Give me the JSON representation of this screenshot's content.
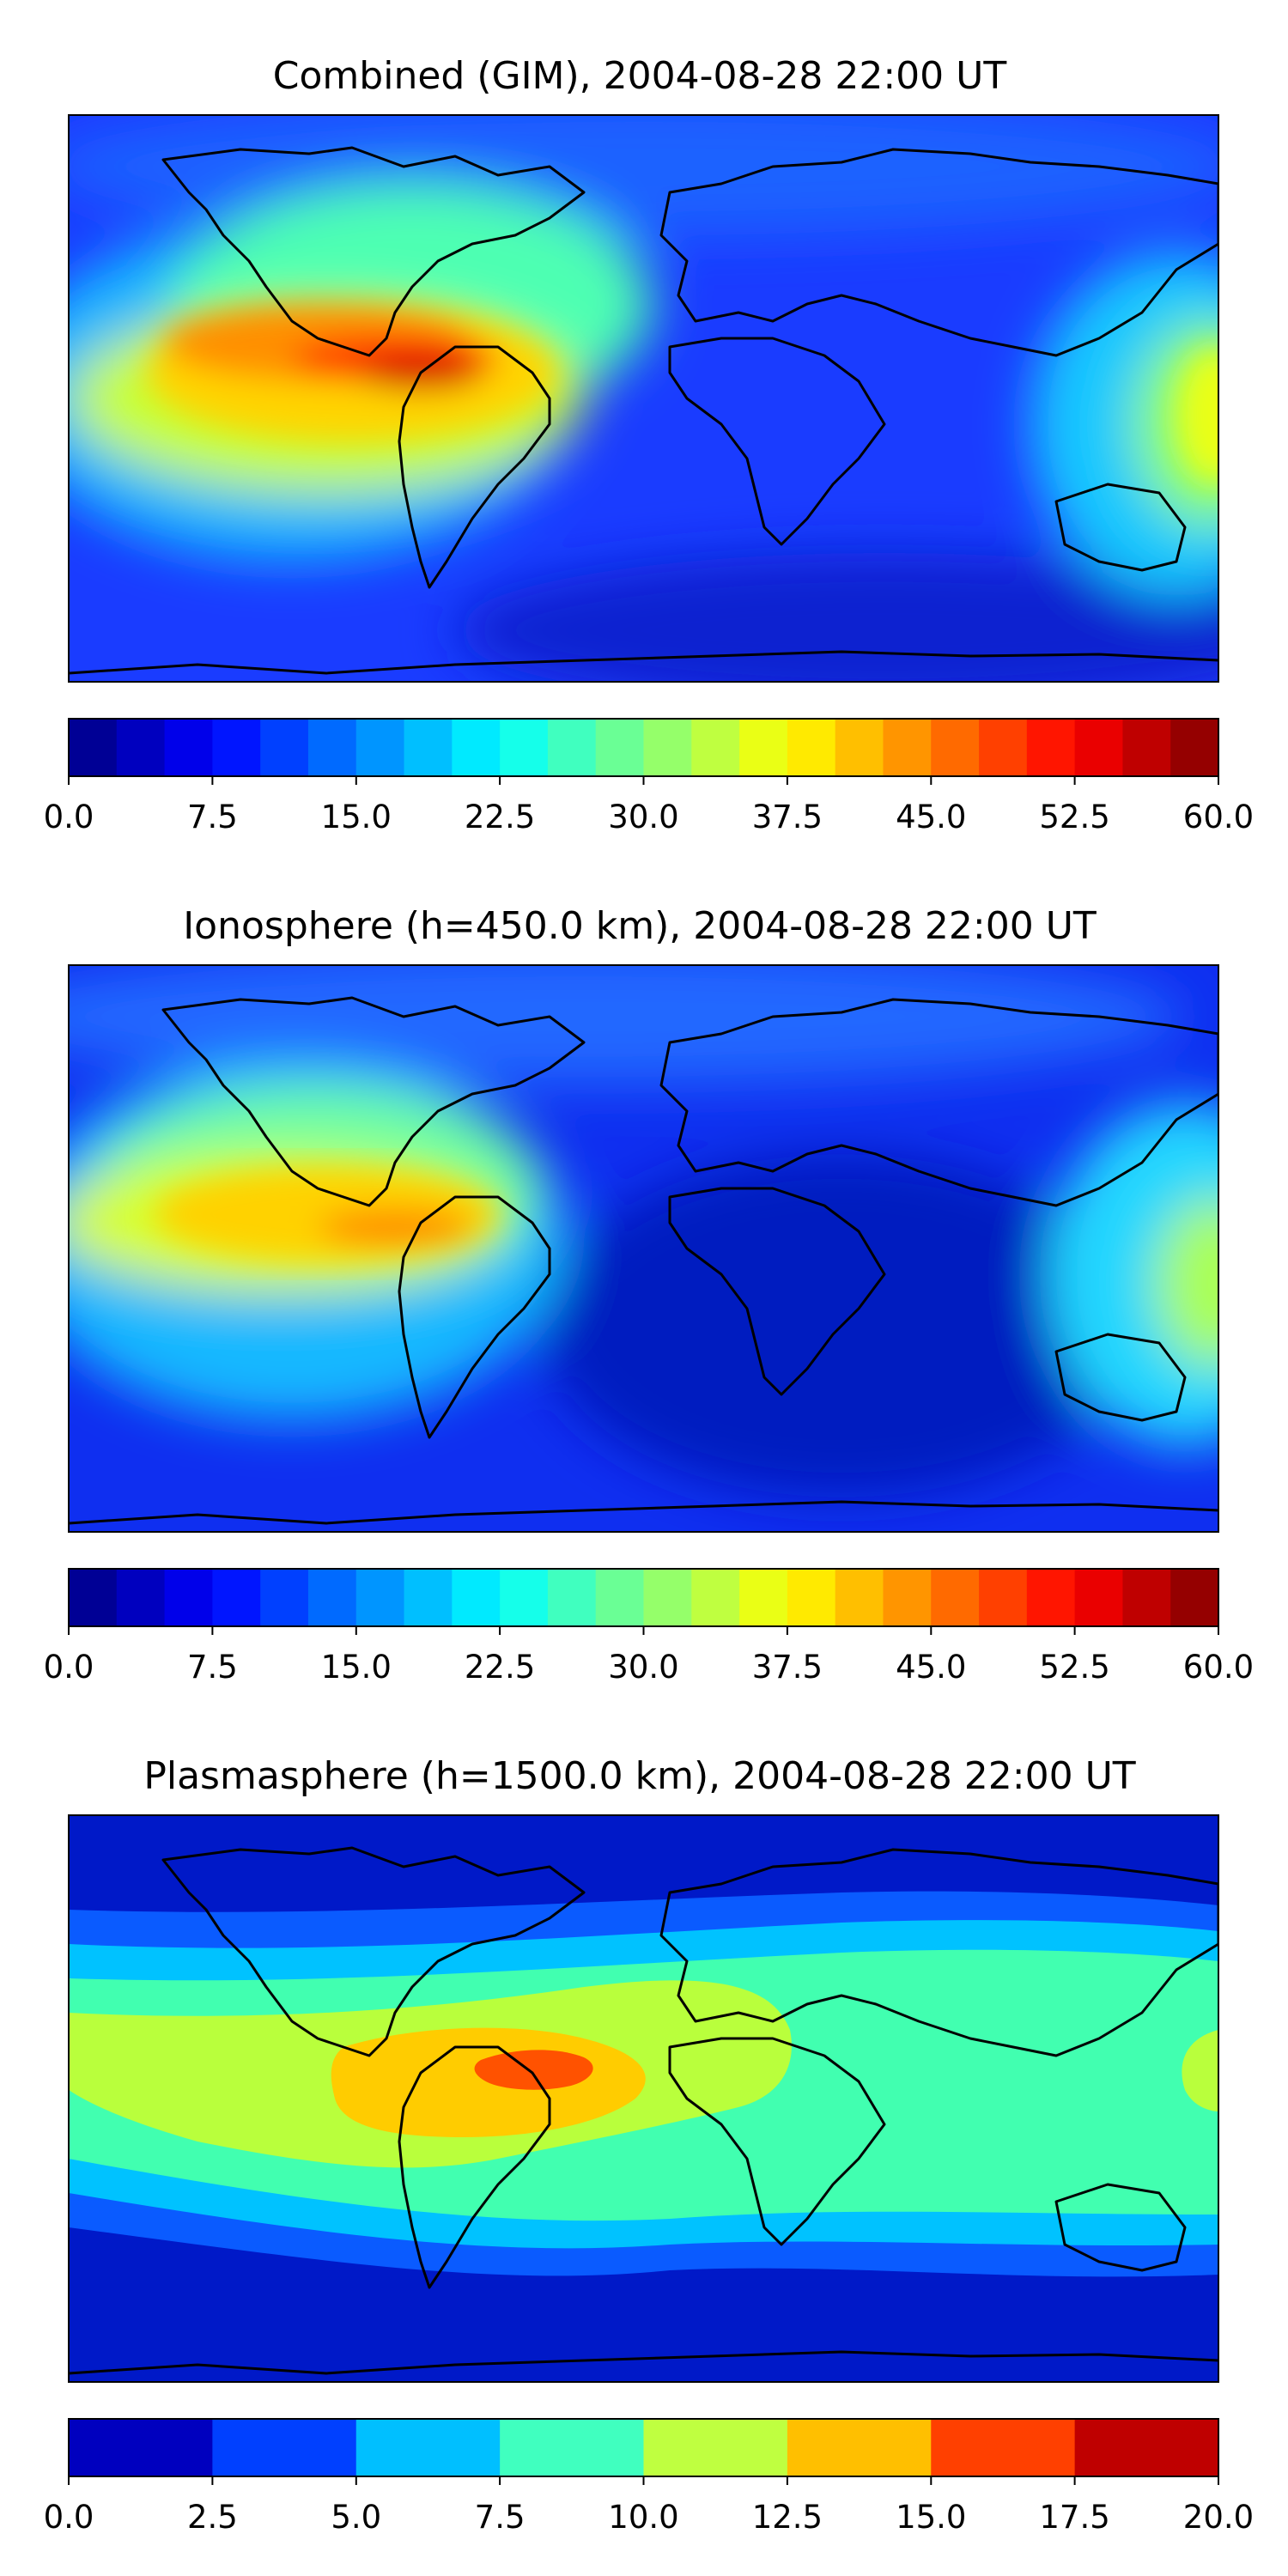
{
  "panels": [
    {
      "title": "Combined (GIM), 2004-08-28 22:00 UT",
      "colorbar": {
        "range": [
          0,
          60
        ],
        "levels": 24,
        "ticks": [
          "0.0",
          "7.5",
          "15.0",
          "22.5",
          "30.0",
          "37.5",
          "45.0",
          "52.5",
          "60.0"
        ]
      }
    },
    {
      "title": "Ionosphere  (h=450.0 km), 2004-08-28 22:00 UT",
      "colorbar": {
        "range": [
          0,
          60
        ],
        "levels": 24,
        "ticks": [
          "0.0",
          "7.5",
          "15.0",
          "22.5",
          "30.0",
          "37.5",
          "45.0",
          "52.5",
          "60.0"
        ]
      }
    },
    {
      "title": "Plasmasphere (h=1500.0 km), 2004-08-28 22:00 UT",
      "colorbar": {
        "range": [
          0,
          20
        ],
        "levels": 8,
        "ticks": [
          "0.0",
          "2.5",
          "5.0",
          "7.5",
          "10.0",
          "12.5",
          "15.0",
          "17.5",
          "20.0"
        ]
      }
    }
  ],
  "colormap": "jet",
  "map": {
    "projection": "equirectangular",
    "extent_deg": [
      -180,
      180,
      -90,
      90
    ],
    "coastline_color": "#000000"
  }
}
